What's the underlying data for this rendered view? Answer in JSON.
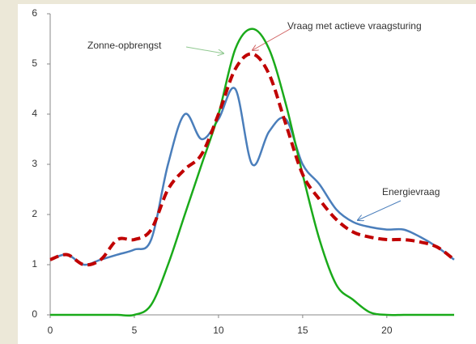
{
  "chart_data": {
    "type": "line",
    "x": [
      0,
      1,
      2,
      3,
      4,
      5,
      6,
      7,
      8,
      9,
      10,
      11,
      12,
      13,
      14,
      15,
      16,
      17,
      18,
      19,
      20,
      21,
      22,
      23,
      24
    ],
    "series": [
      {
        "name": "Energievraag",
        "color": "#4a7ebb",
        "dashed": false,
        "values": [
          1.1,
          1.2,
          1.0,
          1.1,
          1.2,
          1.3,
          1.5,
          3.0,
          4.0,
          3.5,
          3.9,
          4.5,
          3.0,
          3.65,
          3.9,
          3.0,
          2.6,
          2.1,
          1.85,
          1.75,
          1.7,
          1.7,
          1.55,
          1.35,
          1.1
        ]
      },
      {
        "name": "Zonne-opbrengst",
        "color": "#1aaa1a",
        "dashed": false,
        "values": [
          0,
          0,
          0,
          0,
          0,
          0,
          0.2,
          1.0,
          2.0,
          3.0,
          4.0,
          5.3,
          5.7,
          5.3,
          4.2,
          2.8,
          1.5,
          0.6,
          0.3,
          0.05,
          0,
          0,
          0,
          0,
          0
        ]
      },
      {
        "name": "Vraag met actieve vraagsturing",
        "color": "#c00000",
        "dashed": true,
        "values": [
          1.1,
          1.2,
          1.0,
          1.1,
          1.5,
          1.5,
          1.7,
          2.5,
          2.9,
          3.2,
          4.0,
          4.9,
          5.2,
          4.8,
          3.8,
          2.8,
          2.3,
          1.9,
          1.65,
          1.55,
          1.5,
          1.5,
          1.45,
          1.35,
          1.1
        ]
      }
    ],
    "xlim": [
      0,
      24
    ],
    "xticks": [
      0,
      5,
      10,
      15,
      20
    ],
    "ylim": [
      0,
      6
    ],
    "yticks": [
      0,
      1,
      2,
      3,
      4,
      5,
      6
    ],
    "grid": false
  }
}
